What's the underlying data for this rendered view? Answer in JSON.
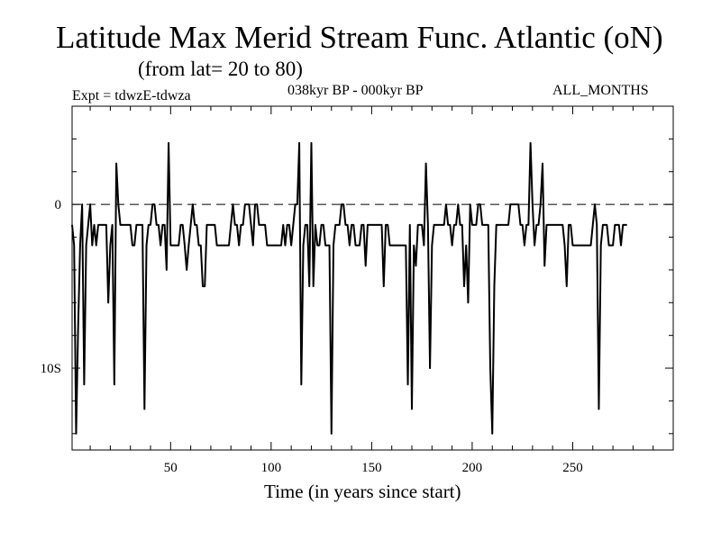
{
  "header": {
    "title": "Latitude Max Merid Stream Func. Atlantic (oN)",
    "subtitle": "(from lat= 20 to 80)",
    "expt": "Expt = tdwzE-tdwza",
    "period": "038kyr BP - 000kyr BP",
    "months": "ALL_MONTHS"
  },
  "chart_data": {
    "type": "line",
    "title": "Latitude Max Merid Stream Func. Atlantic (oN)",
    "subtitle": "(from lat= 20 to 80)",
    "xlabel": "Time (in years since start)",
    "ylabel": "",
    "xlim": [
      1,
      300
    ],
    "ylim": [
      -15,
      6
    ],
    "x_ticks": [
      50,
      100,
      150,
      200,
      250
    ],
    "x_tick_labels": [
      "50",
      "100",
      "150",
      "200",
      "250"
    ],
    "y_ticks": [
      0,
      -10
    ],
    "y_tick_labels": [
      "0",
      "10S"
    ],
    "reference_line": {
      "y": 0,
      "style": "dashed"
    },
    "grid": false,
    "series": [
      {
        "values_start_year": 1,
        "values": [
          -1.25,
          -2.5,
          -14,
          -7.5,
          -2.5,
          0,
          -11,
          -2.5,
          -1.25,
          0,
          -2.5,
          -1.25,
          -2.5,
          -1.25,
          -1.25,
          -1.25,
          -1.25,
          -1.25,
          -6,
          -2.5,
          -1.25,
          -11,
          2.5,
          0,
          -1.25,
          -1.25,
          -1.25,
          -1.25,
          -1.25,
          -1.25,
          -2.5,
          -2.5,
          -1.25,
          -1.25,
          -1.25,
          -1.25,
          -12.5,
          -2.5,
          -1.25,
          -1.25,
          0,
          0,
          -1.25,
          -1.25,
          -2.5,
          -1.25,
          -1.25,
          -4,
          3.75,
          -2.5,
          -2.5,
          -2.5,
          -2.5,
          -2.5,
          -1.25,
          -1.25,
          -2.5,
          -4,
          -2.5,
          -1.25,
          0,
          -1.25,
          -1.25,
          -2.5,
          -2.5,
          -5,
          -5,
          -1.25,
          -1.25,
          -1.25,
          -1.25,
          -1.25,
          -2.5,
          -2.5,
          -2.5,
          -2.5,
          -2.5,
          -2.5,
          -2.5,
          -1.25,
          0,
          -1.25,
          -1.25,
          -2.5,
          -1.25,
          -1.25,
          0,
          0,
          0,
          -1.25,
          -2.5,
          0,
          0,
          -1.25,
          -1.25,
          -1.25,
          -1.25,
          -2.5,
          -2.5,
          -2.5,
          -2.5,
          -2.5,
          -2.5,
          -2.5,
          -2.5,
          -1.25,
          -2.5,
          -1.25,
          -1.25,
          -2.5,
          -1.25,
          0,
          0,
          3.75,
          -11,
          -2.5,
          -1.25,
          -1.25,
          -5,
          3.75,
          -5,
          -1.25,
          -2.5,
          -2.5,
          -1.25,
          -1.25,
          -2.5,
          -2.5,
          -2.5,
          -14,
          -2.5,
          -1.25,
          -1.25,
          -1.25,
          0,
          0,
          -1.25,
          -1.25,
          -2.5,
          -1.25,
          -1.25,
          -2.5,
          -2.5,
          -2.5,
          -1.25,
          -1.25,
          -3.75,
          -1.25,
          -1.25,
          -1.25,
          -1.25,
          -1.25,
          -1.25,
          -1.25,
          -1.25,
          -5,
          -1.25,
          -1.25,
          -2.5,
          -2.5,
          -2.5,
          -2.5,
          -2.5,
          -2.5,
          -2.5,
          -2.5,
          -2.5,
          -11,
          -1.25,
          -12.5,
          -2.5,
          -3.75,
          -1.25,
          -1.25,
          -1.25,
          -2.5,
          2.5,
          -1.25,
          -10,
          -2.5,
          -1.25,
          -1.25,
          -1.25,
          -1.25,
          -1.25,
          -1.25,
          0,
          -1.25,
          -1.25,
          -2.5,
          -1.25,
          -1.25,
          0,
          -1.25,
          -1.25,
          -5,
          -2.5,
          -6,
          0,
          -1.25,
          -1.25,
          -1.25,
          0,
          0,
          -1.25,
          -1.25,
          -1.25,
          -1.25,
          -10,
          -14,
          -5,
          -1.25,
          -1.25,
          -1.25,
          -1.25,
          -1.25,
          -1.25,
          -1.25,
          0,
          0,
          0,
          0,
          0,
          -1.25,
          -1.25,
          -2.5,
          -1.25,
          -1.25,
          3.75,
          0,
          -2.5,
          -1.25,
          -1.25,
          0,
          2.5,
          -3.75,
          -1.25,
          -1.25,
          -1.25,
          -1.25,
          -1.25,
          -1.25,
          -1.25,
          -1.25,
          -1.25,
          -2.5,
          -5,
          -1.25,
          -1.25,
          -2.5,
          -2.5,
          -2.5,
          -2.5,
          -2.5,
          -2.5,
          -2.5,
          -2.5,
          -2.5,
          -2.5,
          -1.25,
          0,
          -1.25,
          -12.5,
          -2.5,
          -1.25,
          -1.25,
          -1.25,
          -2.5,
          -2.5,
          -2.5,
          -1.25,
          -1.25,
          -1.25,
          -2.5,
          -1.25,
          -1.25,
          -1.25
        ]
      }
    ]
  }
}
